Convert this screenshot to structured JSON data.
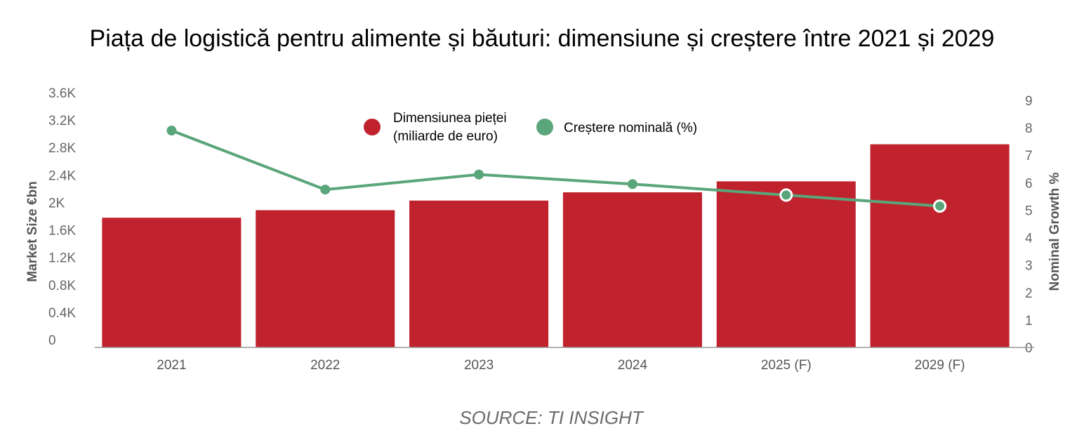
{
  "colors": {
    "bar": "#c0222e",
    "line": "#5aa57a",
    "axis": "#555555",
    "text": "#666666"
  },
  "source_note": "SOURCE: TI INSIGHT",
  "chart_data": {
    "type": "bar+line",
    "title": "Piața de logistică pentru alimente și băuturi: dimensiune și creștere între 2021 și 2029",
    "ylabel": "Market Size €bn",
    "y2label": "Nominal Growth %",
    "categories": [
      "2021",
      "2022",
      "2023",
      "2024",
      "2025 (F)",
      "2029 (F)"
    ],
    "ylim": [
      0,
      3600
    ],
    "y2lim": [
      0,
      9
    ],
    "y_ticks": [
      "0",
      "0.4K",
      "0.8K",
      "1.2K",
      "1.6K",
      "2K",
      "2.4K",
      "2.8K",
      "3.2K",
      "3.6K"
    ],
    "y2_ticks": [
      "0",
      "1",
      "2",
      "3",
      "4",
      "5",
      "6",
      "7",
      "8",
      "9"
    ],
    "legend_placement": "top-center",
    "series": [
      {
        "name": "Dimensiunea pieței (miliarde de euro)",
        "name_lines": [
          "Dimensiunea pieței",
          "(miliarde de euro)"
        ],
        "type": "bar",
        "axis": "left",
        "values": [
          1890,
          2000,
          2140,
          2260,
          2420,
          2960
        ]
      },
      {
        "name": "Creștere nominală (%)",
        "type": "line",
        "axis": "right",
        "values": [
          7.9,
          5.75,
          6.3,
          5.95,
          5.55,
          5.15
        ]
      }
    ]
  }
}
